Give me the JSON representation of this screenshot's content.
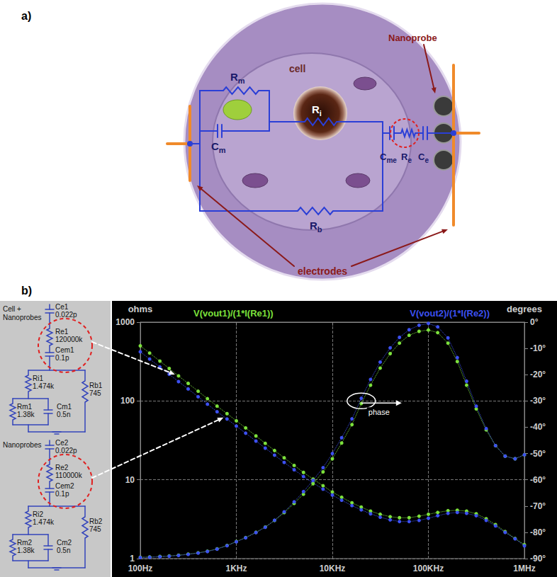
{
  "figure": {
    "panel_a": {
      "label": "a)",
      "cell": "cell",
      "nanoprobe": "Nanoprobe",
      "electrodes": "electrodes",
      "components": {
        "rm": "Rm",
        "cm": "Cm",
        "ri": "Ri",
        "cme": "Cme",
        "re": "Re",
        "ce": "Ce",
        "rb": "Rb"
      }
    },
    "panel_b": {
      "label": "b)",
      "blocks": [
        {
          "title_lines": [
            "Cell +",
            "Nanoprobes"
          ],
          "components": [
            {
              "name": "Ce1",
              "value": "0.022p"
            },
            {
              "name": "Re1",
              "value": "120000k"
            },
            {
              "name": "Cem1",
              "value": "0.1p"
            },
            {
              "name": "Ri1",
              "value": "1.474k"
            },
            {
              "name": "Rm1",
              "value": "1.38k"
            },
            {
              "name": "Cm1",
              "value": "0.5n"
            },
            {
              "name": "Rb1",
              "value": "745"
            }
          ]
        },
        {
          "title_lines": [
            "Nanoprobes"
          ],
          "components": [
            {
              "name": "Ce2",
              "value": "0.022p"
            },
            {
              "name": "Re2",
              "value": "110000k"
            },
            {
              "name": "Cem2",
              "value": "0.1p"
            },
            {
              "name": "Ri2",
              "value": "1.474k"
            },
            {
              "name": "Rm2",
              "value": "1.38k"
            },
            {
              "name": "Cm2",
              "value": "0.5n"
            },
            {
              "name": "Rb2",
              "value": "745"
            }
          ]
        }
      ]
    }
  },
  "chart_data": {
    "type": "line",
    "log": true,
    "grid": true,
    "y_label": "ohms",
    "y2_label": "degrees",
    "xlim": [
      100,
      1000000
    ],
    "xticks": [
      {
        "value": 100,
        "label": "100Hz"
      },
      {
        "value": 1000,
        "label": "1KHz"
      },
      {
        "value": 10000,
        "label": "10KHz"
      },
      {
        "value": 100000,
        "label": "100KHz"
      },
      {
        "value": 1000000,
        "label": "1MHz"
      }
    ],
    "ylim": [
      1,
      1000
    ],
    "yticks": [
      1,
      10,
      100,
      1000
    ],
    "y2lim": [
      -90,
      0
    ],
    "y2ticks": [
      {
        "value": -90,
        "label": "-90°"
      },
      {
        "value": -80,
        "label": "-80°"
      },
      {
        "value": -70,
        "label": "-70°"
      },
      {
        "value": -60,
        "label": "-60°"
      },
      {
        "value": -50,
        "label": "-50°"
      },
      {
        "value": -40,
        "label": "-40°"
      },
      {
        "value": -30,
        "label": "-30°"
      },
      {
        "value": -20,
        "label": "-20°"
      },
      {
        "value": -10,
        "label": "-10°"
      },
      {
        "value": 0,
        "label": "0°"
      }
    ],
    "x": [
      100,
      125,
      160,
      200,
      250,
      315,
      400,
      500,
      630,
      800,
      1000,
      1250,
      1600,
      2000,
      2500,
      3150,
      4000,
      5000,
      6300,
      8000,
      10000,
      12500,
      16000,
      20000,
      25000,
      31500,
      40000,
      50000,
      63000,
      80000,
      100000,
      125000,
      160000,
      200000,
      250000,
      315000,
      400000,
      500000,
      630000,
      800000,
      1000000
    ],
    "series": [
      {
        "name": "V(vout1)/(1*I(Re1))",
        "color": "#7ce03c",
        "marker": "circle",
        "line_style": "dotted",
        "values": [
          500,
          405,
          320,
          258,
          208,
          167,
          133,
          107,
          86,
          69,
          56,
          45.5,
          36,
          29,
          23.5,
          19,
          15.2,
          12.4,
          10.2,
          8.4,
          7,
          6,
          5.1,
          4.5,
          4,
          3.65,
          3.4,
          3.3,
          3.3,
          3.45,
          3.65,
          3.85,
          4.05,
          4.1,
          4,
          3.7,
          3.2,
          2.7,
          2.2,
          1.8,
          1.5
        ]
      },
      {
        "name": "V(vout2)/(1*I(Re2))",
        "color": "#3c50f0",
        "marker": "circle",
        "line_style": "dotted",
        "values": [
          420,
          340,
          270,
          218,
          176,
          142,
          113,
          91,
          73,
          59,
          48,
          39,
          31,
          25.2,
          20.5,
          16.6,
          13.4,
          11,
          9.1,
          7.6,
          6.4,
          5.5,
          4.7,
          4.15,
          3.7,
          3.35,
          3.1,
          2.95,
          2.95,
          3.05,
          3.25,
          3.5,
          3.75,
          3.85,
          3.75,
          3.5,
          3.05,
          2.6,
          2.15,
          1.78,
          1.45
        ]
      },
      {
        "name": "V(vout1)/(1*I(Re1))",
        "color": "#7ce03c",
        "marker": "circle",
        "line_style": "dotted",
        "axis": "y2",
        "values": [
          -89.5,
          -89.4,
          -89.2,
          -89,
          -88.7,
          -88.3,
          -87.8,
          -87.2,
          -86.3,
          -85,
          -83.5,
          -82,
          -80,
          -78,
          -75.5,
          -72.5,
          -69,
          -65.5,
          -61.5,
          -57,
          -52,
          -46,
          -39,
          -31,
          -24,
          -17.5,
          -12,
          -8,
          -5,
          -3.5,
          -3,
          -4,
          -8,
          -15,
          -24,
          -33,
          -41,
          -47,
          -51,
          -52,
          -50.5
        ]
      },
      {
        "name": "V(vout2)/(1*I(Re2))",
        "color": "#3c50f0",
        "marker": "circle",
        "line_style": "dotted",
        "axis": "y2",
        "values": [
          -89.6,
          -89.5,
          -89.3,
          -89.1,
          -88.8,
          -88.4,
          -87.9,
          -87.3,
          -86.4,
          -85.1,
          -83.6,
          -82.1,
          -80.1,
          -78.1,
          -75.4,
          -72.2,
          -68.4,
          -64.5,
          -60.2,
          -55.4,
          -50,
          -44,
          -36.8,
          -29,
          -21.8,
          -15.2,
          -9.8,
          -5.8,
          -2.9,
          -1.2,
          -0.5,
          -1.8,
          -6,
          -13.5,
          -22.5,
          -32,
          -40.5,
          -47,
          -51,
          -52,
          -50.5
        ]
      }
    ],
    "annotations": [
      {
        "text": "phase",
        "x": 20000,
        "y": -30,
        "axis": "y2"
      }
    ]
  }
}
